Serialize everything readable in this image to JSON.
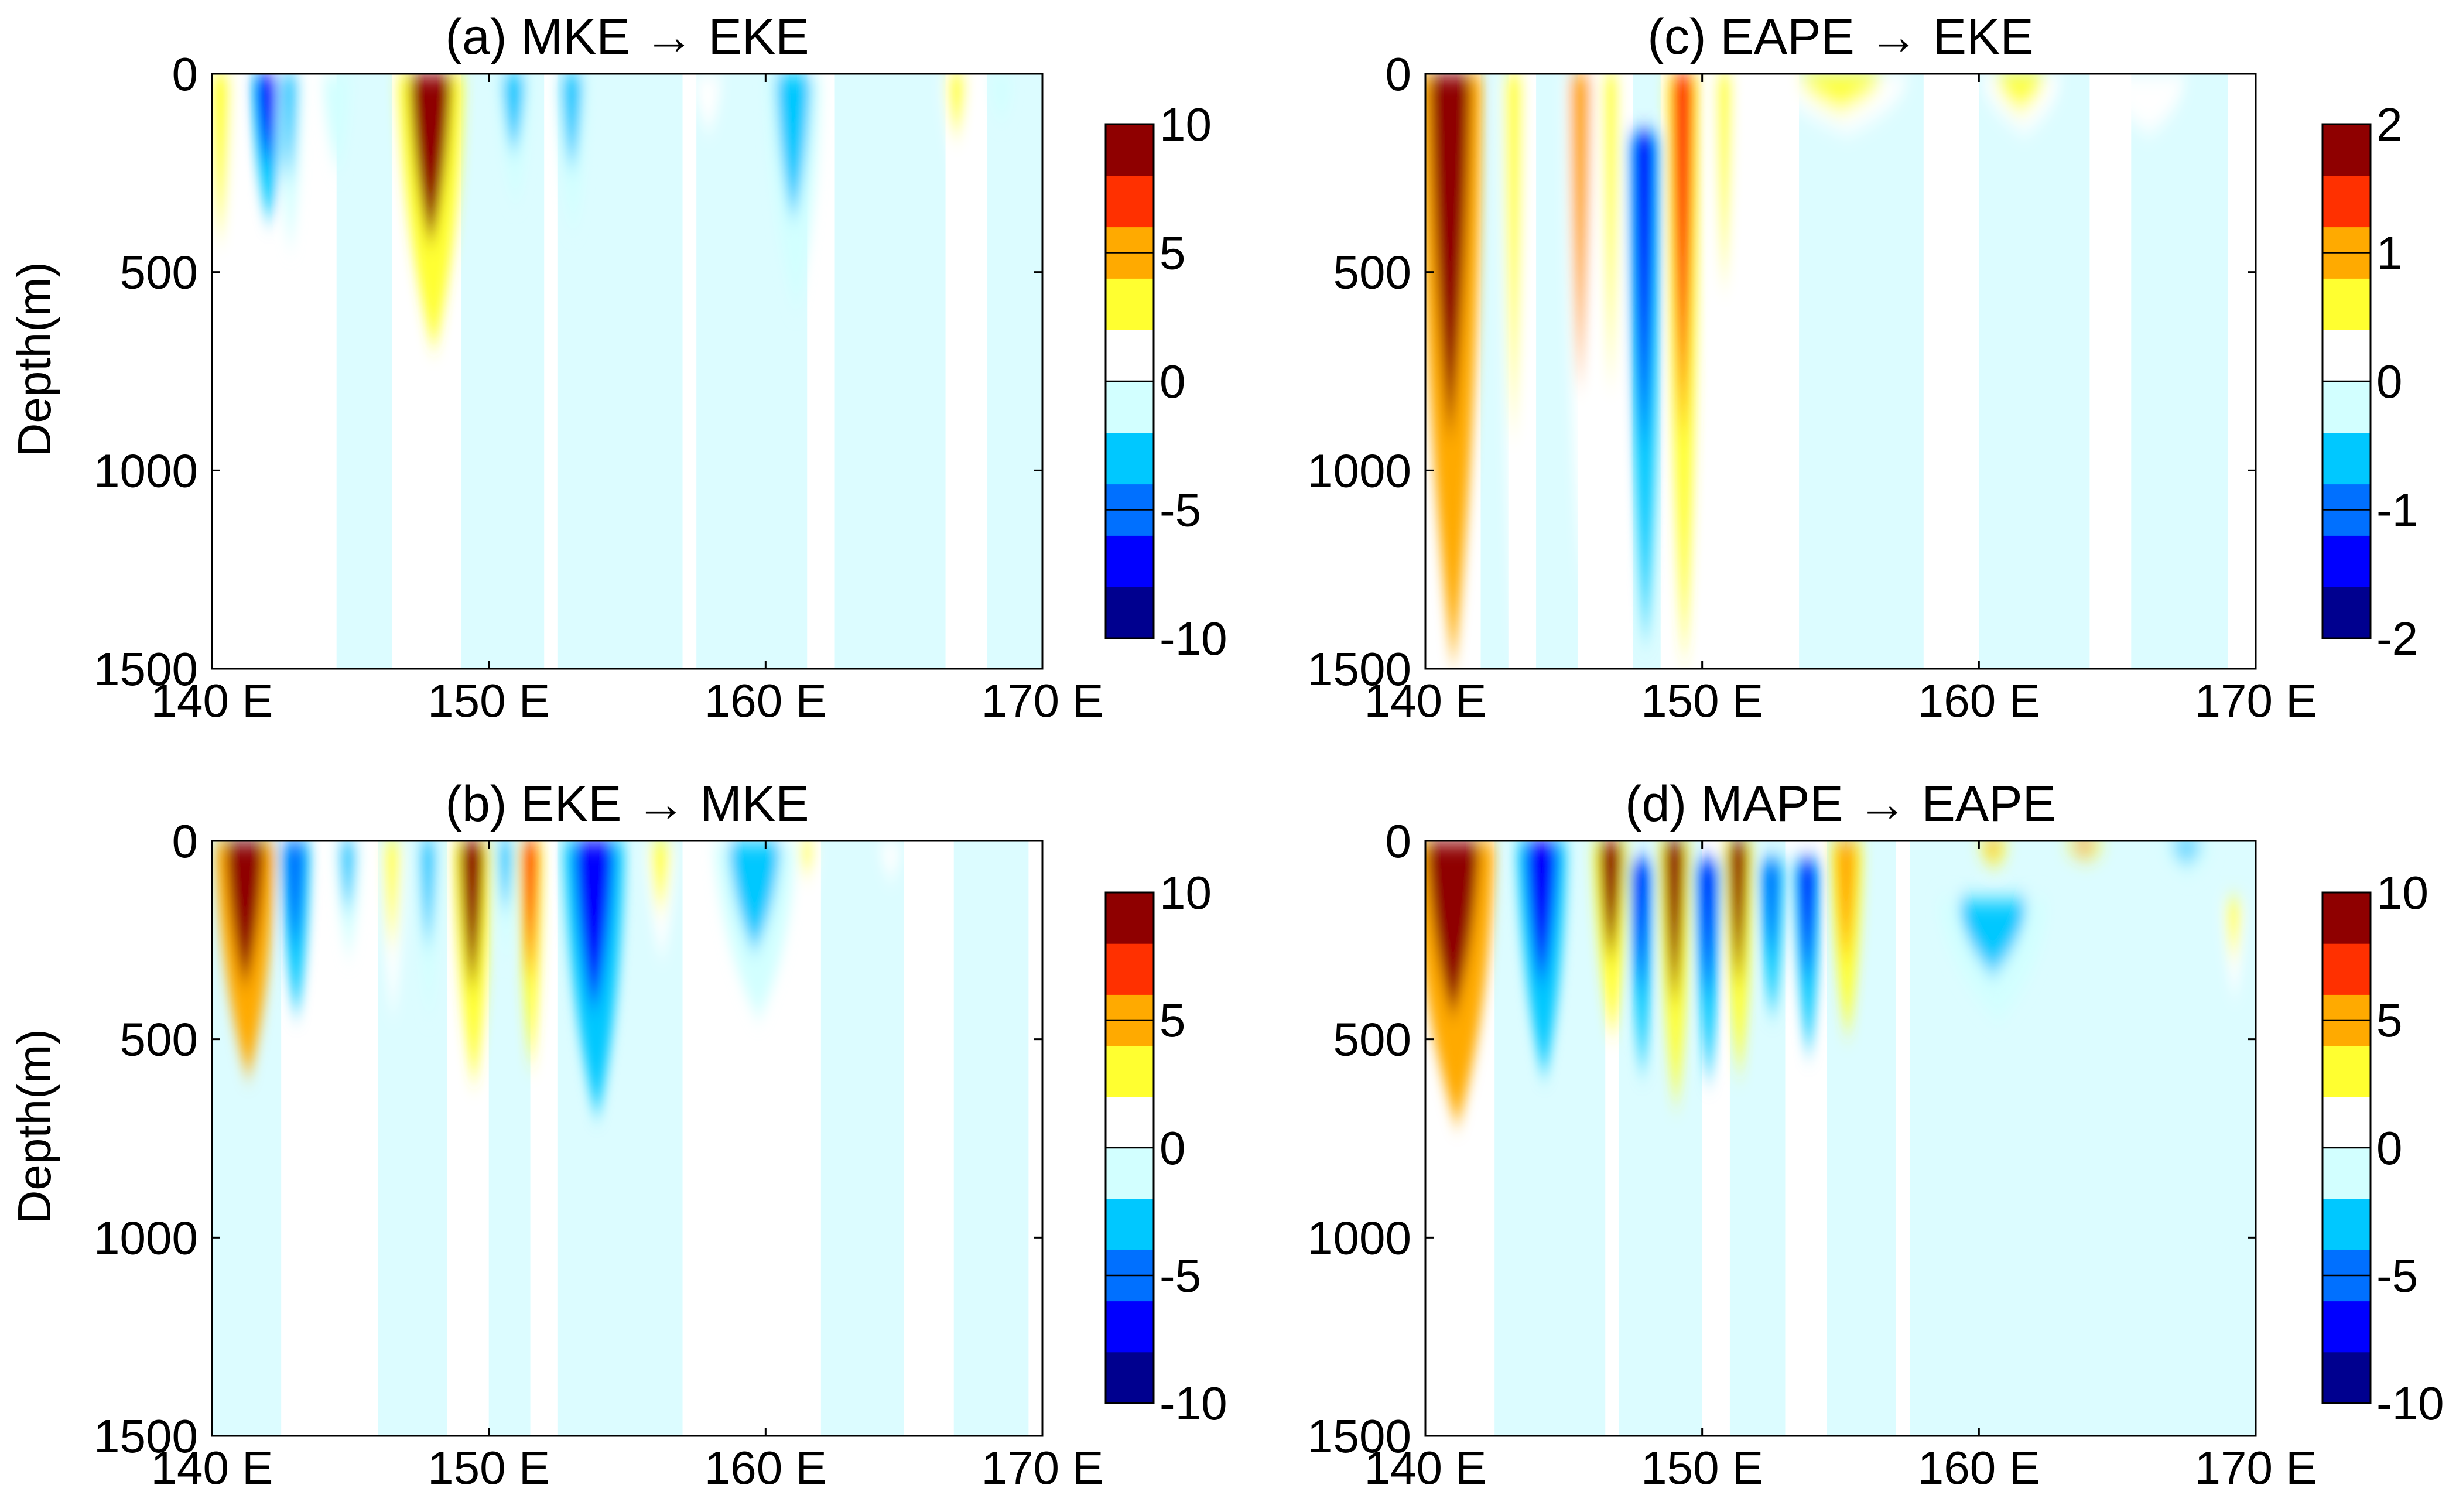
{
  "chart_data": [
    {
      "type": "heatmap",
      "panel": "a",
      "title": "(a) MKE → EKE",
      "xlabel": "",
      "ylabel": "Depth(m)",
      "x_ticks": [
        "140 E",
        "150 E",
        "160 E",
        "170 E"
      ],
      "xlim": [
        140,
        170
      ],
      "y_ticks": [
        "0",
        "500",
        "1000",
        "1500"
      ],
      "ylim": [
        0,
        1500
      ],
      "colorbar": {
        "min": -10,
        "max": 10,
        "ticks": [
          "10",
          "5",
          "0",
          "-5",
          "-10"
        ]
      },
      "features": [
        {
          "lon": 140.3,
          "width": 1.2,
          "depth_top": 0,
          "depth_bottom": 700,
          "value": 2.5
        },
        {
          "lon": 142.0,
          "width": 1.2,
          "depth_top": 0,
          "depth_bottom": 380,
          "value": -6.5
        },
        {
          "lon": 142.8,
          "width": 0.9,
          "depth_top": 0,
          "depth_bottom": 450,
          "value": -2.5
        },
        {
          "lon": 144.5,
          "width": 1.0,
          "depth_top": 0,
          "depth_bottom": 250,
          "value": -2.0
        },
        {
          "lon": 147.9,
          "width": 2.4,
          "depth_top": 0,
          "depth_bottom": 700,
          "value": 8.5
        },
        {
          "lon": 150.9,
          "width": 1.3,
          "depth_top": 0,
          "depth_bottom": 330,
          "value": -2.5
        },
        {
          "lon": 153.0,
          "width": 1.2,
          "depth_top": 0,
          "depth_bottom": 400,
          "value": -2.5
        },
        {
          "lon": 161.0,
          "width": 2.0,
          "depth_top": 0,
          "depth_bottom": 600,
          "value": -2.5
        },
        {
          "lon": 157.9,
          "width": 1.0,
          "depth_top": 0,
          "depth_bottom": 150,
          "value": 1.5
        },
        {
          "lon": 166.9,
          "width": 1.1,
          "depth_top": 0,
          "depth_bottom": 270,
          "value": 2.5
        },
        {
          "lon": 168.5,
          "width": 0.8,
          "depth_top": 0,
          "depth_bottom": 120,
          "value": -1.5
        }
      ]
    },
    {
      "type": "heatmap",
      "panel": "b",
      "title": "(b) EKE → MKE",
      "xlabel": "",
      "ylabel": "Depth(m)",
      "x_ticks": [
        "140 E",
        "150 E",
        "160 E",
        "170 E"
      ],
      "xlim": [
        140,
        170
      ],
      "y_ticks": [
        "0",
        "500",
        "1000",
        "1500"
      ],
      "ylim": [
        0,
        1500
      ],
      "colorbar": {
        "min": -10,
        "max": 10,
        "ticks": [
          "10",
          "5",
          "0",
          "-5",
          "-10"
        ]
      },
      "features": [
        {
          "lon": 141.2,
          "width": 2.2,
          "depth_top": 0,
          "depth_bottom": 600,
          "value": 9.0
        },
        {
          "lon": 143.0,
          "width": 1.1,
          "depth_top": 0,
          "depth_bottom": 450,
          "value": -5.5
        },
        {
          "lon": 144.9,
          "width": 0.9,
          "depth_top": 0,
          "depth_bottom": 300,
          "value": -3.0
        },
        {
          "lon": 146.5,
          "width": 0.9,
          "depth_top": 0,
          "depth_bottom": 450,
          "value": 2.5
        },
        {
          "lon": 147.8,
          "width": 0.9,
          "depth_top": 0,
          "depth_bottom": 450,
          "value": -3.0
        },
        {
          "lon": 149.4,
          "width": 1.4,
          "depth_top": 0,
          "depth_bottom": 620,
          "value": 8.0
        },
        {
          "lon": 150.6,
          "width": 0.8,
          "depth_top": 0,
          "depth_bottom": 300,
          "value": -4.0
        },
        {
          "lon": 151.5,
          "width": 0.9,
          "depth_top": 0,
          "depth_bottom": 580,
          "value": 7.0
        },
        {
          "lon": 153.8,
          "width": 2.2,
          "depth_top": 0,
          "depth_bottom": 700,
          "value": -7.5
        },
        {
          "lon": 156.2,
          "width": 1.1,
          "depth_top": 0,
          "depth_bottom": 300,
          "value": 2.5
        },
        {
          "lon": 159.6,
          "width": 3.0,
          "depth_top": 0,
          "depth_bottom": 450,
          "value": -2.5
        },
        {
          "lon": 161.5,
          "width": 0.8,
          "depth_top": 0,
          "depth_bottom": 150,
          "value": 2.0
        },
        {
          "lon": 164.5,
          "width": 0.8,
          "depth_top": 0,
          "depth_bottom": 100,
          "value": 1.5
        }
      ]
    },
    {
      "type": "heatmap",
      "panel": "c",
      "title": "(c) EAPE → EKE",
      "xlabel": "",
      "ylabel": "",
      "x_ticks": [
        "140 E",
        "150 E",
        "160 E",
        "170 E"
      ],
      "xlim": [
        140,
        170
      ],
      "y_ticks": [
        "0",
        "500",
        "1000",
        "1500"
      ],
      "ylim": [
        0,
        1500
      ],
      "colorbar": {
        "min": -2,
        "max": 2,
        "ticks": [
          "2",
          "1",
          "0",
          "-1",
          "-2"
        ]
      },
      "features": [
        {
          "lon": 140.9,
          "width": 2.3,
          "depth_top": 0,
          "depth_bottom": 1500,
          "value": 1.8
        },
        {
          "lon": 143.2,
          "width": 1.0,
          "depth_top": 0,
          "depth_bottom": 1500,
          "value": 0.5
        },
        {
          "lon": 145.6,
          "width": 1.2,
          "depth_top": 0,
          "depth_bottom": 1300,
          "value": 0.8
        },
        {
          "lon": 146.7,
          "width": 0.9,
          "depth_top": 0,
          "depth_bottom": 1300,
          "value": 0.7
        },
        {
          "lon": 147.9,
          "width": 1.2,
          "depth_top": 150,
          "depth_bottom": 1450,
          "value": -1.5
        },
        {
          "lon": 149.3,
          "width": 1.2,
          "depth_top": 0,
          "depth_bottom": 1500,
          "value": 1.4
        },
        {
          "lon": 150.8,
          "width": 0.9,
          "depth_top": 0,
          "depth_bottom": 900,
          "value": 0.5
        },
        {
          "lon": 152.5,
          "width": 1.0,
          "depth_top": 0,
          "depth_bottom": 700,
          "value": 0.3
        },
        {
          "lon": 155.0,
          "width": 5.0,
          "depth_top": 0,
          "depth_bottom": 150,
          "value": 0.4
        },
        {
          "lon": 161.5,
          "width": 3.0,
          "depth_top": 0,
          "depth_bottom": 150,
          "value": 0.4
        },
        {
          "lon": 166.0,
          "width": 3.0,
          "depth_top": 0,
          "depth_bottom": 150,
          "value": 0.3
        }
      ]
    },
    {
      "type": "heatmap",
      "panel": "d",
      "title": "(d) MAPE → EAPE",
      "xlabel": "",
      "ylabel": "",
      "x_ticks": [
        "140 E",
        "150 E",
        "160 E",
        "170 E"
      ],
      "xlim": [
        140,
        170
      ],
      "y_ticks": [
        "0",
        "500",
        "1000",
        "1500"
      ],
      "ylim": [
        0,
        1500
      ],
      "colorbar": {
        "min": -10,
        "max": 10,
        "ticks": [
          "10",
          "5",
          "0",
          "-5",
          "-10"
        ]
      },
      "features": [
        {
          "lon": 141.0,
          "width": 3.0,
          "depth_top": 0,
          "depth_bottom": 720,
          "value": 10.0
        },
        {
          "lon": 144.2,
          "width": 1.8,
          "depth_top": 0,
          "depth_bottom": 600,
          "value": -7.5
        },
        {
          "lon": 146.7,
          "width": 1.3,
          "depth_top": 0,
          "depth_bottom": 500,
          "value": 8.0
        },
        {
          "lon": 147.8,
          "width": 0.9,
          "depth_top": 50,
          "depth_bottom": 600,
          "value": -7.0
        },
        {
          "lon": 149.0,
          "width": 1.2,
          "depth_top": 0,
          "depth_bottom": 680,
          "value": 8.0
        },
        {
          "lon": 150.2,
          "width": 1.0,
          "depth_top": 50,
          "depth_bottom": 620,
          "value": -8.0
        },
        {
          "lon": 151.3,
          "width": 1.1,
          "depth_top": 0,
          "depth_bottom": 600,
          "value": 8.5
        },
        {
          "lon": 152.5,
          "width": 0.9,
          "depth_top": 50,
          "depth_bottom": 450,
          "value": -5.5
        },
        {
          "lon": 153.8,
          "width": 1.0,
          "depth_top": 50,
          "depth_bottom": 550,
          "value": -6.5
        },
        {
          "lon": 155.2,
          "width": 1.2,
          "depth_top": 0,
          "depth_bottom": 500,
          "value": 4.5
        },
        {
          "lon": 160.5,
          "width": 4.0,
          "depth_top": 150,
          "depth_bottom": 450,
          "value": -3.0
        },
        {
          "lon": 160.5,
          "width": 1.2,
          "depth_top": 0,
          "depth_bottom": 60,
          "value": 5.0
        },
        {
          "lon": 163.8,
          "width": 1.6,
          "depth_top": 0,
          "depth_bottom": 40,
          "value": 6.0
        },
        {
          "lon": 167.5,
          "width": 2.0,
          "depth_top": 0,
          "depth_bottom": 80,
          "value": -2.5
        },
        {
          "lon": 169.2,
          "width": 0.8,
          "depth_top": 150,
          "depth_bottom": 400,
          "value": 2.0
        }
      ]
    }
  ]
}
